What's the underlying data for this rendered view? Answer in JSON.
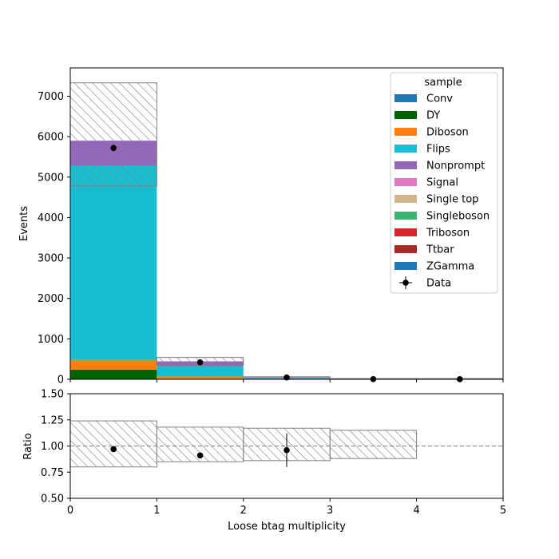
{
  "colors": {
    "hatch": "#808080",
    "data_marker": "#000000",
    "ratio_line": "#808080"
  },
  "chart_data": [
    {
      "type": "bar",
      "subtype": "stacked-histogram",
      "xlabel": "",
      "ylabel": "Events",
      "xlim": [
        0,
        5
      ],
      "ylim": [
        0,
        7700
      ],
      "yticks": [
        0,
        1000,
        2000,
        3000,
        4000,
        5000,
        6000,
        7000
      ],
      "ytick_labels": [
        "0",
        "1000",
        "2000",
        "3000",
        "4000",
        "5000",
        "6000",
        "7000"
      ],
      "bin_edges": [
        0,
        1,
        2,
        3,
        4,
        5
      ],
      "legend": {
        "title": "sample",
        "placement": "top-right",
        "entries": [
          "Conv",
          "DY",
          "Diboson",
          "Flips",
          "Nonprompt",
          "Signal",
          "Single top",
          "Singleboson",
          "Triboson",
          "Ttbar",
          "ZGamma",
          "Data"
        ]
      },
      "series": [
        {
          "name": "Conv",
          "color": "#1f77b4",
          "values": [
            0,
            0,
            0,
            0,
            0
          ]
        },
        {
          "name": "DY",
          "color": "#006400",
          "values": [
            240,
            15,
            1,
            0,
            0
          ]
        },
        {
          "name": "Diboson",
          "color": "#ff7f0e",
          "values": [
            240,
            50,
            3,
            0,
            0
          ]
        },
        {
          "name": "Flips",
          "color": "#17becf",
          "values": [
            4800,
            260,
            15,
            0,
            0
          ]
        },
        {
          "name": "Nonprompt",
          "color": "#9467bd",
          "values": [
            620,
            120,
            12,
            0,
            0
          ]
        },
        {
          "name": "Signal",
          "color": "#e377c2",
          "values": [
            0,
            0,
            0,
            0,
            0
          ]
        },
        {
          "name": "Single top",
          "color": "#d2b48c",
          "values": [
            0,
            0,
            0,
            0,
            0
          ]
        },
        {
          "name": "Singleboson",
          "color": "#3cb371",
          "values": [
            0,
            0,
            0,
            0,
            0
          ]
        },
        {
          "name": "Triboson",
          "color": "#d62728",
          "values": [
            0,
            0,
            0,
            0,
            0
          ]
        },
        {
          "name": "Ttbar",
          "color": "#a52a2a",
          "values": [
            0,
            0,
            0,
            0,
            0
          ]
        },
        {
          "name": "ZGamma",
          "color": "#1f77b4",
          "values": [
            0,
            0,
            0,
            0,
            0
          ]
        }
      ],
      "uncertainty_band": {
        "lower": [
          4780,
          350,
          40,
          0,
          0
        ],
        "upper": [
          7330,
          540,
          64,
          0,
          0
        ]
      },
      "data": {
        "name": "Data",
        "x": [
          0.5,
          1.5,
          2.5,
          3.5,
          4.5
        ],
        "y": [
          5720,
          420,
          45,
          5,
          3
        ],
        "yerr": [
          76,
          20,
          7,
          2,
          2
        ]
      }
    },
    {
      "type": "scatter",
      "subtype": "ratio",
      "xlabel": "Loose btag multiplicity",
      "ylabel": "Ratio",
      "xlim": [
        0,
        5
      ],
      "ylim": [
        0.5,
        1.5
      ],
      "xticks": [
        0,
        1,
        2,
        3,
        4,
        5
      ],
      "xtick_labels": [
        "0",
        "1",
        "2",
        "3",
        "4",
        "5"
      ],
      "yticks": [
        0.5,
        0.75,
        1.0,
        1.25,
        1.5
      ],
      "ytick_labels": [
        "0.50",
        "0.75",
        "1.00",
        "1.25",
        "1.50"
      ],
      "reference_line": 1.0,
      "uncertainty_band": {
        "bin_edges": [
          0,
          1,
          2,
          3,
          4,
          5
        ],
        "lower": [
          0.8,
          0.85,
          0.86,
          0.88,
          1.0
        ],
        "upper": [
          1.24,
          1.18,
          1.17,
          1.15,
          1.0
        ]
      },
      "data": {
        "x": [
          0.5,
          1.5,
          2.5
        ],
        "y": [
          0.97,
          0.91,
          0.96
        ],
        "yerr": [
          0.01,
          0.02,
          0.16
        ]
      }
    }
  ]
}
